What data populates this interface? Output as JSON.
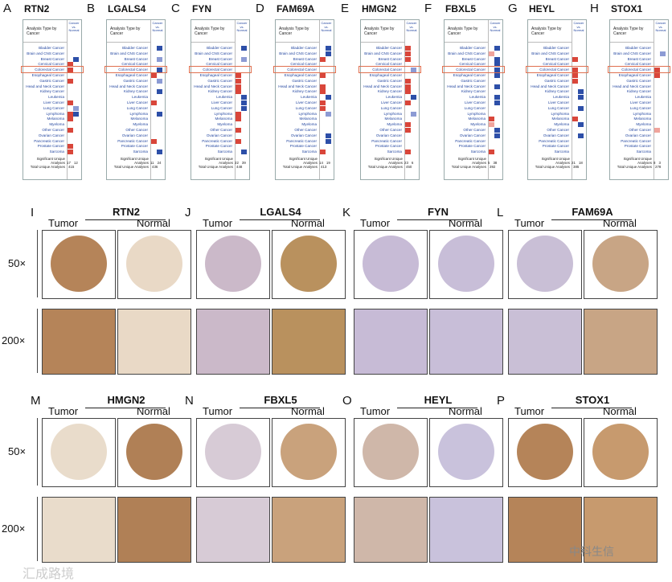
{
  "oncomine_panels": [
    {
      "letter": "A",
      "gene": "RTN2",
      "header": "Analysis Type by Cancer",
      "colhdr": "Cancer vs. Normal",
      "sig": [
        "17",
        "12"
      ],
      "total": "415"
    },
    {
      "letter": "B",
      "gene": "LGALS4",
      "header": "Analysis Type by Cancer",
      "colhdr": "Cancer vs. Normal",
      "sig": [
        "11",
        "24"
      ],
      "total": "436"
    },
    {
      "letter": "C",
      "gene": "FYN",
      "header": "Analysis Type by Cancer",
      "colhdr": "Cancer vs. Normal",
      "sig": [
        "22",
        "39"
      ],
      "total": "448"
    },
    {
      "letter": "D",
      "gene": "FAM69A",
      "header": "Analysis Type by Cancer",
      "colhdr": "Cancer vs. Normal",
      "sig": [
        "14",
        "19"
      ],
      "total": "413"
    },
    {
      "letter": "E",
      "gene": "HMGN2",
      "header": "Analysis Type by Cancer",
      "colhdr": "Cancer vs. Normal",
      "sig": [
        "23",
        "6"
      ],
      "total": "450"
    },
    {
      "letter": "F",
      "gene": "FBXL5",
      "header": "Analysis Type by Cancer",
      "colhdr": "Cancer vs. Normal",
      "sig": [
        "5",
        "38"
      ],
      "total": "392"
    },
    {
      "letter": "G",
      "gene": "HEYL",
      "header": "Analysis Type by Cancer",
      "colhdr": "Cancer vs. Normal",
      "sig": [
        "21",
        "18"
      ],
      "total": "385"
    },
    {
      "letter": "H",
      "gene": "STOX1",
      "header": "Analysis Type by Cancer",
      "colhdr": "Cancer vs. Normal",
      "sig": [
        "8",
        "3"
      ],
      "total": "278"
    }
  ],
  "cancer_types": [
    "Bladder Cancer",
    "Brain and CNS Cancer",
    "Breast Cancer",
    "Cervical Cancer",
    "Colorectal Cancer",
    "Esophageal Cancer",
    "Gastric Cancer",
    "Head and Neck Cancer",
    "Kidney Cancer",
    "Leukemia",
    "Liver Cancer",
    "Lung Cancer",
    "Lymphoma",
    "Melanoma",
    "Myeloma",
    "Other Cancer",
    "Ovarian Cancer",
    "Pancreatic Cancer",
    "Prostate Cancer",
    "Sarcoma"
  ],
  "footer": {
    "sig_label": "Significant Unique Analyses",
    "total_label": "Total Unique Analyses"
  },
  "ihc_row1": [
    {
      "letter": "I",
      "gene": "RTN2"
    },
    {
      "letter": "J",
      "gene": "LGALS4"
    },
    {
      "letter": "K",
      "gene": "FYN"
    },
    {
      "letter": "L",
      "gene": "FAM69A"
    }
  ],
  "ihc_row2": [
    {
      "letter": "M",
      "gene": "HMGN2"
    },
    {
      "letter": "N",
      "gene": "FBXL5"
    },
    {
      "letter": "O",
      "gene": "HEYL"
    },
    {
      "letter": "P",
      "gene": "STOX1"
    }
  ],
  "labels": {
    "tumor": "Tumor",
    "normal": "Normal",
    "mag50": "50×",
    "mag200": "200×"
  },
  "watermark_left": "汇成路境",
  "watermark_right": "中科生信",
  "colors": {
    "red": "#d9463a",
    "blue": "#2d4fa8",
    "stain_brown": "#a0663f",
    "hema_blue": "#7e82b8"
  }
}
